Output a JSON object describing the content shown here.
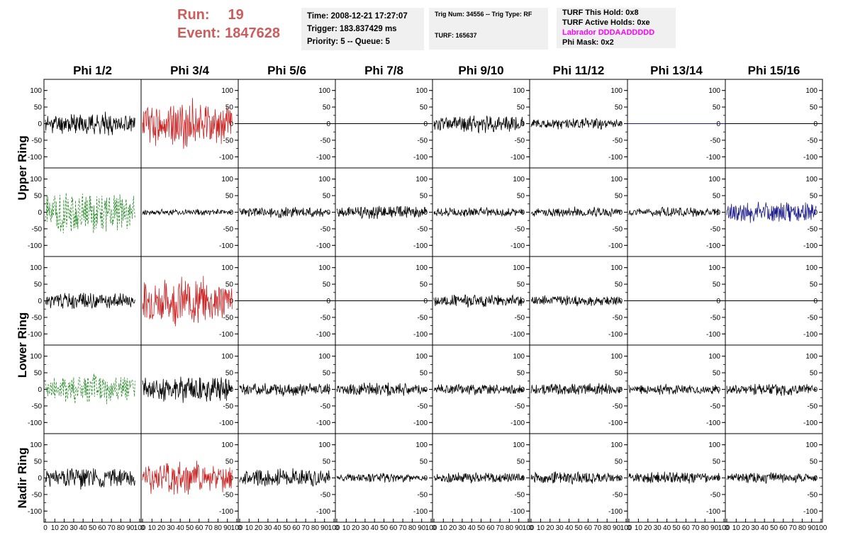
{
  "header": {
    "run_label": "Run:",
    "run_value": "19",
    "event_label": "Event:",
    "event_value": "1847628"
  },
  "info": {
    "time": "Time: 2008-12-21 17:27:07",
    "trigger": "Trigger: 183.837429 ms",
    "priority": "Priority: 5 -- Queue: 5",
    "trig_num": "Trig Num: 34556 -- Trig Type: RF",
    "turf": "TURF: 165637",
    "turf_this_hold": "TURF This Hold: 0x8",
    "turf_active_holds": "TURF Active Holds: 0xe",
    "labrador": "Labrador DDDAADDDDD",
    "phi_mask": "Phi Mask: 0x2"
  },
  "colors": {
    "trace_default": "#000000",
    "trace_red": "#cc2222",
    "trace_green": "#228b22",
    "trace_blue": "#1a1a8c",
    "run_text": "#cd5c5c",
    "labrador": "#ff00ff",
    "info_bg": "#f0f0f0"
  },
  "chart_data": {
    "type": "line",
    "columns": [
      "Phi 1/2",
      "Phi 3/4",
      "Phi 5/6",
      "Phi 7/8",
      "Phi 9/10",
      "Phi 11/12",
      "Phi 13/14",
      "Phi 15/16"
    ],
    "rings": [
      "Upper Ring",
      "Lower Ring",
      "Nadir Ring"
    ],
    "xlim": [
      0,
      100
    ],
    "ylim": [
      -125,
      125
    ],
    "xticks": [
      "0",
      "10",
      "20",
      "30",
      "40",
      "50",
      "60",
      "70",
      "80",
      "90",
      "100"
    ],
    "yticks": [
      "100",
      "50",
      "0",
      "-50",
      "-100"
    ],
    "grid": false,
    "x_extent": 95,
    "rows": [
      {
        "ring": "Upper Ring",
        "panels": [
          {
            "amp": 28,
            "color": "black",
            "style": "solid",
            "seed": 11
          },
          {
            "amp": 60,
            "color": "red",
            "style": "solid",
            "seed": 12
          },
          {
            "amp": 0,
            "color": "black",
            "style": "solid",
            "seed": 13
          },
          {
            "amp": 0,
            "color": "black",
            "style": "solid",
            "seed": 14
          },
          {
            "amp": 22,
            "color": "black",
            "style": "solid",
            "seed": 15
          },
          {
            "amp": 14,
            "color": "black",
            "style": "solid",
            "seed": 16
          },
          {
            "amp": 0,
            "color": "blue",
            "style": "solid",
            "seed": 17
          },
          {
            "amp": 0,
            "color": "black",
            "style": "solid",
            "seed": 18
          }
        ]
      },
      {
        "ring": "Upper Ring",
        "panels": [
          {
            "amp": 55,
            "color": "green",
            "style": "dashed",
            "seed": 21
          },
          {
            "amp": 8,
            "color": "black",
            "style": "solid",
            "seed": 22
          },
          {
            "amp": 14,
            "color": "black",
            "style": "solid",
            "seed": 23
          },
          {
            "amp": 16,
            "color": "black",
            "style": "solid",
            "seed": 24
          },
          {
            "amp": 12,
            "color": "black",
            "style": "solid",
            "seed": 25
          },
          {
            "amp": 13,
            "color": "black",
            "style": "solid",
            "seed": 26
          },
          {
            "amp": 12,
            "color": "black",
            "style": "solid",
            "seed": 27
          },
          {
            "amp": 28,
            "color": "blue",
            "style": "solid",
            "seed": 28
          }
        ]
      },
      {
        "ring": "Lower Ring",
        "panels": [
          {
            "amp": 22,
            "color": "black",
            "style": "solid",
            "seed": 31
          },
          {
            "amp": 60,
            "color": "red",
            "style": "solid",
            "seed": 32
          },
          {
            "amp": 0,
            "color": "black",
            "style": "solid",
            "seed": 33
          },
          {
            "amp": 0,
            "color": "black",
            "style": "solid",
            "seed": 34
          },
          {
            "amp": 16,
            "color": "black",
            "style": "solid",
            "seed": 35
          },
          {
            "amp": 14,
            "color": "black",
            "style": "solid",
            "seed": 36
          },
          {
            "amp": 0,
            "color": "black",
            "style": "solid",
            "seed": 37
          },
          {
            "amp": 0,
            "color": "black",
            "style": "solid",
            "seed": 38
          }
        ]
      },
      {
        "ring": "Lower Ring",
        "panels": [
          {
            "amp": 40,
            "color": "green",
            "style": "dashed",
            "seed": 41
          },
          {
            "amp": 35,
            "color": "black",
            "style": "solid",
            "seed": 42
          },
          {
            "amp": 17,
            "color": "black",
            "style": "solid",
            "seed": 43
          },
          {
            "amp": 17,
            "color": "black",
            "style": "solid",
            "seed": 44
          },
          {
            "amp": 14,
            "color": "black",
            "style": "solid",
            "seed": 45
          },
          {
            "amp": 16,
            "color": "black",
            "style": "solid",
            "seed": 46
          },
          {
            "amp": 13,
            "color": "black",
            "style": "solid",
            "seed": 47
          },
          {
            "amp": 17,
            "color": "black",
            "style": "solid",
            "seed": 48
          }
        ]
      },
      {
        "ring": "Nadir Ring",
        "panels": [
          {
            "amp": 28,
            "color": "black",
            "style": "solid",
            "seed": 51
          },
          {
            "amp": 45,
            "color": "red",
            "style": "solid",
            "seed": 52
          },
          {
            "amp": 24,
            "color": "black",
            "style": "solid",
            "seed": 53
          },
          {
            "amp": 12,
            "color": "black",
            "style": "solid",
            "seed": 54
          },
          {
            "amp": 14,
            "color": "black",
            "style": "solid",
            "seed": 55
          },
          {
            "amp": 16,
            "color": "black",
            "style": "solid",
            "seed": 56
          },
          {
            "amp": 15,
            "color": "black",
            "style": "solid",
            "seed": 57
          },
          {
            "amp": 14,
            "color": "black",
            "style": "solid",
            "seed": 58
          }
        ]
      }
    ]
  }
}
